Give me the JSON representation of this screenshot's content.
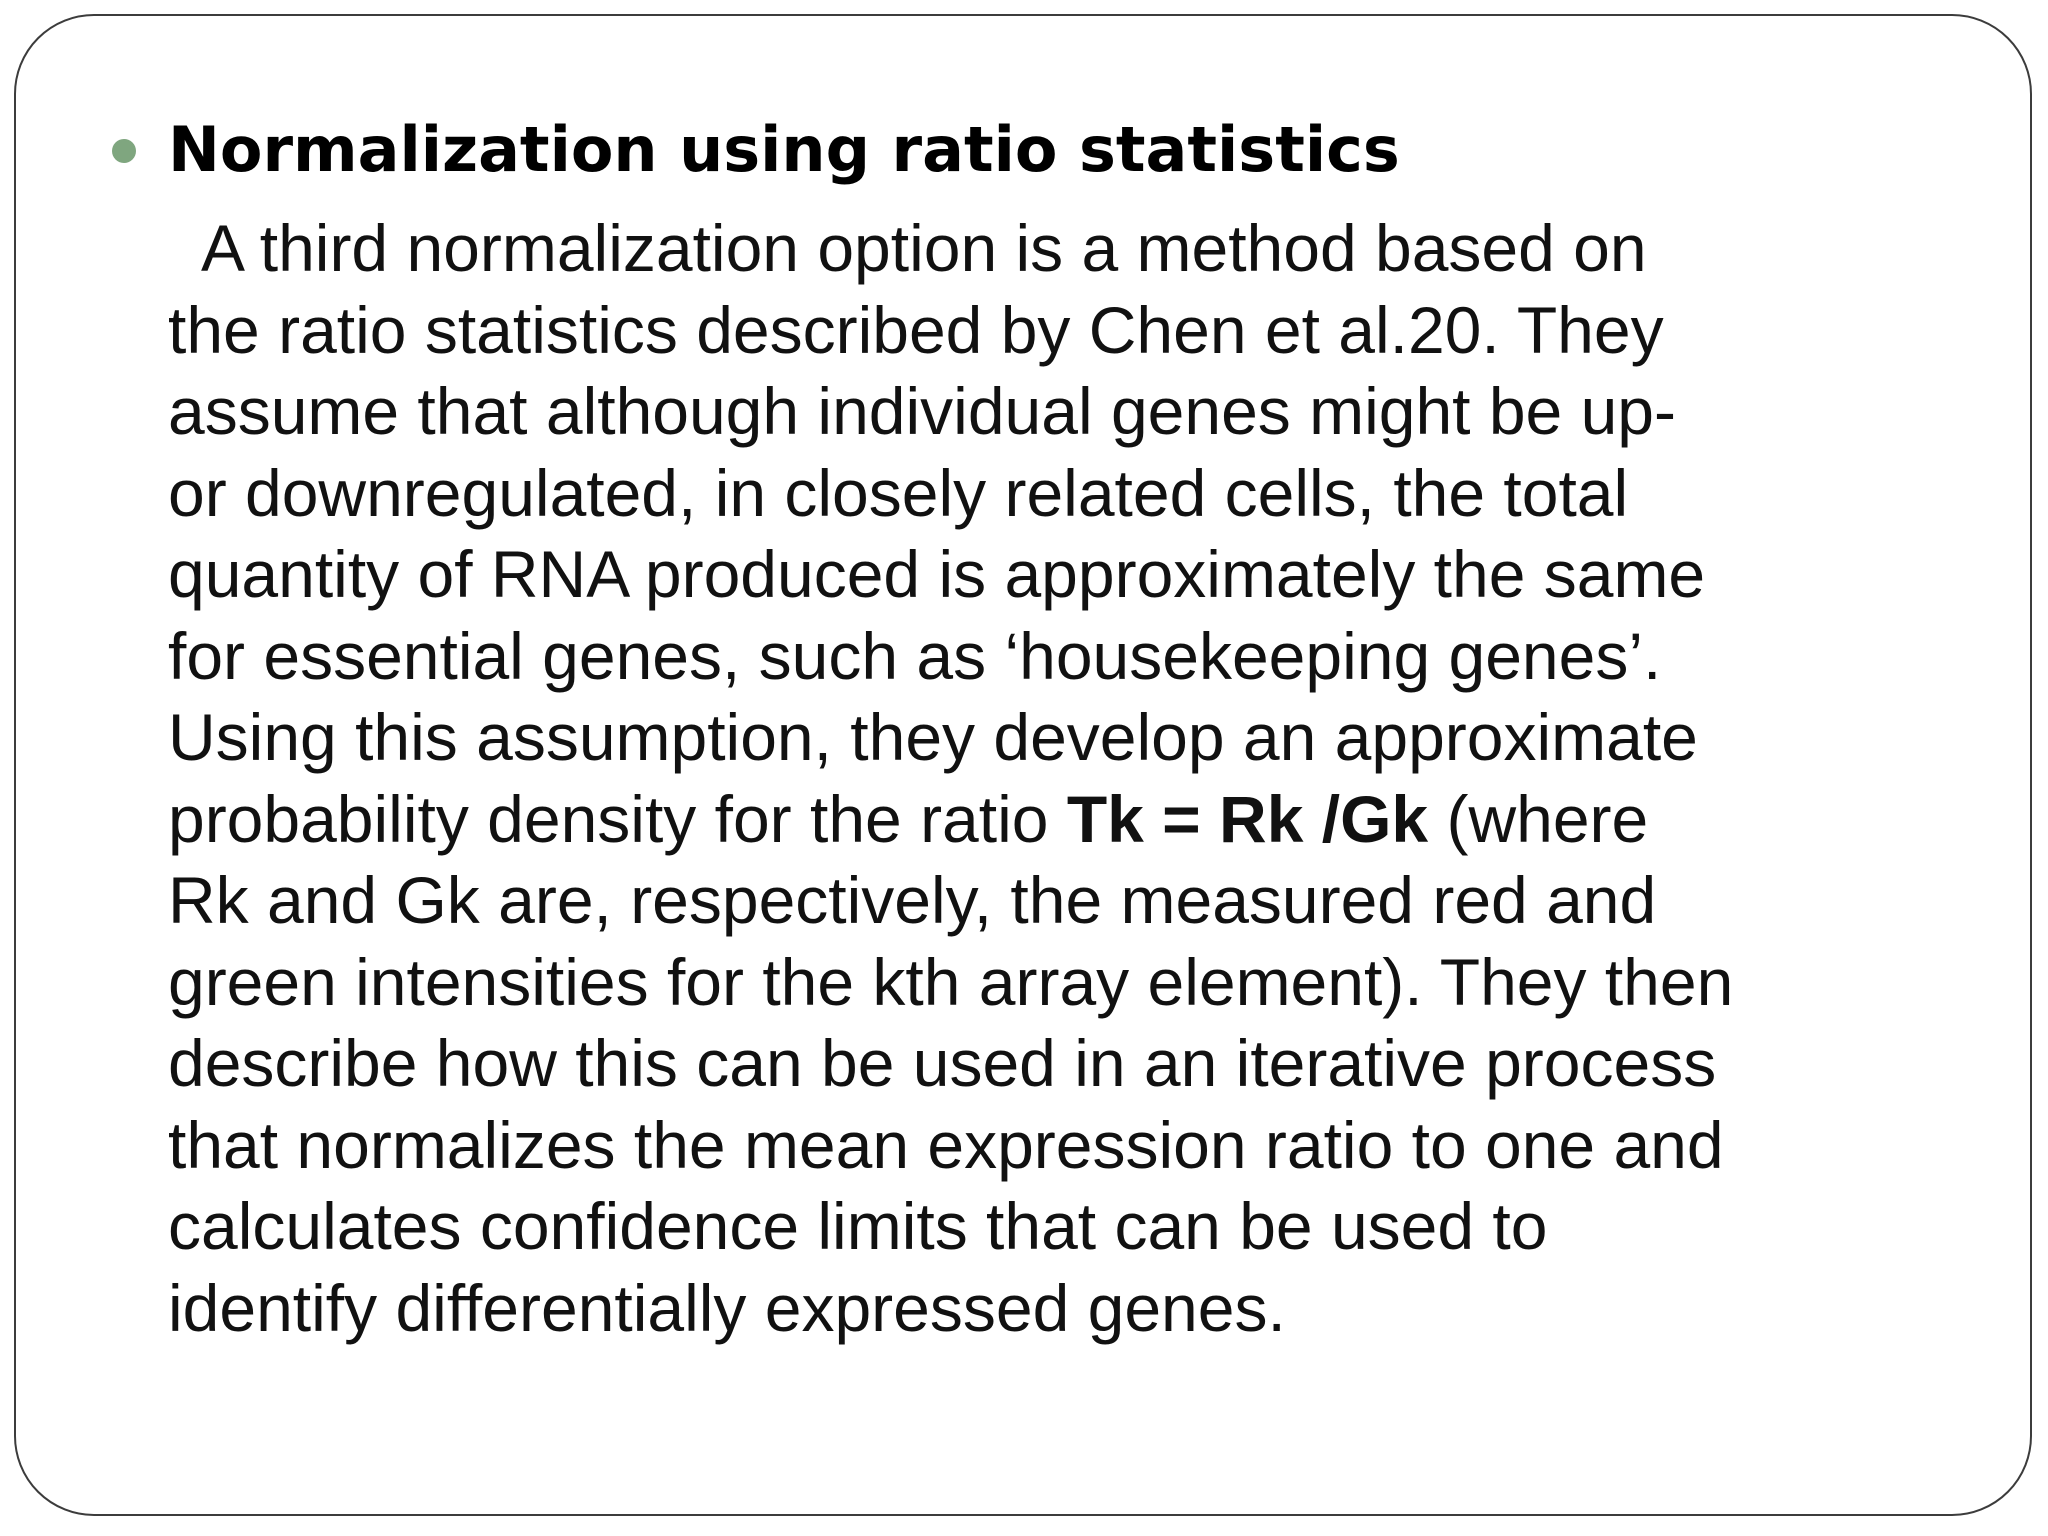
{
  "slide": {
    "heading": "Normalization using ratio statistics",
    "bullet_icon": "green-dot",
    "accent_color": "#7fa67f",
    "paragraph": {
      "line1": "  A third normalization option is a method based on",
      "line2": "the ratio statistics described by Chen et al.20. They",
      "line3": "assume that although individual genes might be up-",
      "line4": "or downregulated, in closely related cells, the total",
      "line5": "quantity of RNA produced is approximately the same",
      "line6": "for essential genes, such as ‘housekeeping genes’.",
      "line7": "Using this assumption, they develop an approximate",
      "line8_prefix": "probability density for the ratio ",
      "line8_bold": "Tk = Rk /Gk",
      "line8_suffix": " (where",
      "line9": "Rk and Gk are, respectively, the measured red and",
      "line10": "green intensities for the kth array element). They then",
      "line11": "describe how this can be used in an iterative process",
      "line12": "that normalizes the mean expression ratio to one and",
      "line13": "calculates confidence limits that can be used to",
      "line14": "identify differentially expressed genes."
    }
  }
}
